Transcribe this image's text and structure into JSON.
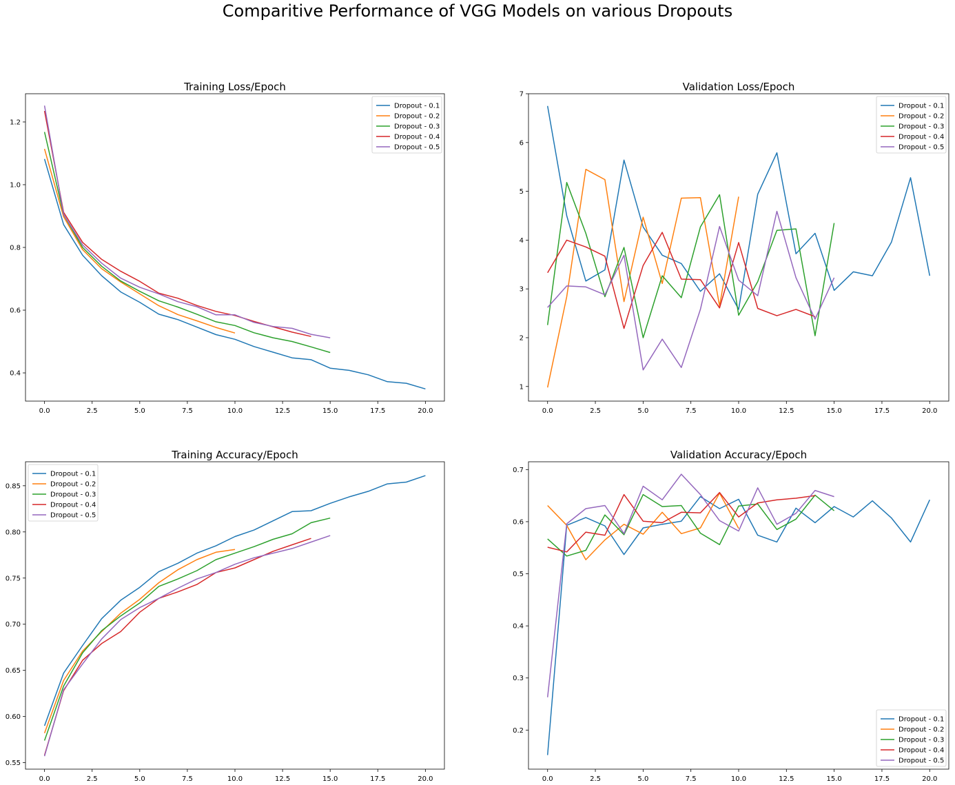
{
  "figure": {
    "suptitle": "Comparitive Performance of VGG Models on various Dropouts"
  },
  "colors": {
    "Dropout - 0.1": "#1f77b4",
    "Dropout - 0.2": "#ff7f0e",
    "Dropout - 0.3": "#2ca02c",
    "Dropout - 0.4": "#d62728",
    "Dropout - 0.5": "#9467bd"
  },
  "chart_data": [
    {
      "type": "line",
      "title": "Training Loss/Epoch",
      "xlabel": "",
      "ylabel": "",
      "xlim": [
        -1,
        21
      ],
      "ylim": [
        0.31,
        1.29
      ],
      "xticks": [
        0.0,
        2.5,
        5.0,
        7.5,
        10.0,
        12.5,
        15.0,
        17.5,
        20.0
      ],
      "xtick_labels": [
        "0.0",
        "2.5",
        "5.0",
        "7.5",
        "10.0",
        "12.5",
        "15.0",
        "17.5",
        "20.0"
      ],
      "yticks": [
        0.4,
        0.6,
        0.8,
        1.0,
        1.2
      ],
      "ytick_labels": [
        "0.4",
        "0.6",
        "0.8",
        "1.0",
        "1.2"
      ],
      "legend": "top-right",
      "grid": false,
      "series": [
        {
          "name": "Dropout - 0.1",
          "values": [
            1.082,
            0.873,
            0.775,
            0.71,
            0.658,
            0.625,
            0.587,
            0.57,
            0.546,
            0.522,
            0.507,
            0.484,
            0.466,
            0.448,
            0.442,
            0.415,
            0.408,
            0.394,
            0.372,
            0.367,
            0.349
          ]
        },
        {
          "name": "Dropout - 0.2",
          "values": [
            1.114,
            0.898,
            0.793,
            0.732,
            0.69,
            0.652,
            0.614,
            0.586,
            0.566,
            0.545,
            0.527
          ]
        },
        {
          "name": "Dropout - 0.3",
          "values": [
            1.168,
            0.905,
            0.8,
            0.74,
            0.693,
            0.66,
            0.63,
            0.61,
            0.587,
            0.563,
            0.551,
            0.528,
            0.512,
            0.5,
            0.483,
            0.465
          ]
        },
        {
          "name": "Dropout - 0.4",
          "values": [
            1.235,
            0.912,
            0.816,
            0.762,
            0.724,
            0.692,
            0.654,
            0.638,
            0.615,
            0.596,
            0.583,
            0.564,
            0.547,
            0.53,
            0.516
          ]
        },
        {
          "name": "Dropout - 0.5",
          "values": [
            1.252,
            0.905,
            0.808,
            0.75,
            0.702,
            0.673,
            0.652,
            0.627,
            0.611,
            0.585,
            0.585,
            0.561,
            0.548,
            0.542,
            0.523,
            0.512
          ]
        }
      ]
    },
    {
      "type": "line",
      "title": "Validation Loss/Epoch",
      "xlabel": "",
      "ylabel": "",
      "xlim": [
        -1,
        21
      ],
      "ylim": [
        0.7,
        7.0
      ],
      "xticks": [
        0.0,
        2.5,
        5.0,
        7.5,
        10.0,
        12.5,
        15.0,
        17.5,
        20.0
      ],
      "xtick_labels": [
        "0.0",
        "2.5",
        "5.0",
        "7.5",
        "10.0",
        "12.5",
        "15.0",
        "17.5",
        "20.0"
      ],
      "yticks": [
        1,
        2,
        3,
        4,
        5,
        6,
        7
      ],
      "ytick_labels": [
        "1",
        "2",
        "3",
        "4",
        "5",
        "6",
        "7"
      ],
      "legend": "top-right",
      "grid": false,
      "series": [
        {
          "name": "Dropout - 0.1",
          "values": [
            6.75,
            4.5,
            3.16,
            3.39,
            5.64,
            4.27,
            3.69,
            3.52,
            2.95,
            3.31,
            2.58,
            4.94,
            5.79,
            3.72,
            4.14,
            2.97,
            3.35,
            3.27,
            3.96,
            5.28,
            3.27
          ]
        },
        {
          "name": "Dropout - 0.2",
          "values": [
            0.98,
            2.84,
            5.45,
            5.24,
            2.74,
            4.47,
            3.11,
            4.86,
            4.87,
            2.65,
            4.89
          ]
        },
        {
          "name": "Dropout - 0.3",
          "values": [
            2.26,
            5.18,
            4.14,
            2.84,
            3.85,
            2.0,
            3.27,
            2.82,
            4.27,
            4.93,
            2.46,
            3.15,
            4.2,
            4.23,
            2.04,
            4.35
          ]
        },
        {
          "name": "Dropout - 0.4",
          "values": [
            3.33,
            4.0,
            3.86,
            3.67,
            2.19,
            3.48,
            4.16,
            3.2,
            3.19,
            2.61,
            3.95,
            2.6,
            2.45,
            2.58,
            2.43
          ]
        },
        {
          "name": "Dropout - 0.5",
          "values": [
            2.62,
            3.06,
            3.04,
            2.88,
            3.69,
            1.34,
            1.97,
            1.39,
            2.58,
            4.28,
            3.18,
            2.86,
            4.59,
            3.23,
            2.38,
            3.23
          ]
        }
      ]
    },
    {
      "type": "line",
      "title": "Training Accuracy/Epoch",
      "xlabel": "",
      "ylabel": "",
      "xlim": [
        -1,
        21
      ],
      "ylim": [
        0.543,
        0.876
      ],
      "xticks": [
        0.0,
        2.5,
        5.0,
        7.5,
        10.0,
        12.5,
        15.0,
        17.5,
        20.0
      ],
      "xtick_labels": [
        "0.0",
        "2.5",
        "5.0",
        "7.5",
        "10.0",
        "12.5",
        "15.0",
        "17.5",
        "20.0"
      ],
      "yticks": [
        0.55,
        0.6,
        0.65,
        0.7,
        0.75,
        0.8,
        0.85
      ],
      "ytick_labels": [
        "0.55",
        "0.60",
        "0.65",
        "0.70",
        "0.75",
        "0.80",
        "0.85"
      ],
      "legend": "top-left",
      "grid": false,
      "series": [
        {
          "name": "Dropout - 0.1",
          "values": [
            0.59,
            0.647,
            0.677,
            0.706,
            0.726,
            0.74,
            0.757,
            0.766,
            0.777,
            0.785,
            0.795,
            0.802,
            0.812,
            0.822,
            0.823,
            0.831,
            0.838,
            0.844,
            0.852,
            0.854,
            0.861
          ]
        },
        {
          "name": "Dropout - 0.2",
          "values": [
            0.582,
            0.639,
            0.671,
            0.692,
            0.712,
            0.727,
            0.745,
            0.759,
            0.77,
            0.778,
            0.781
          ]
        },
        {
          "name": "Dropout - 0.3",
          "values": [
            0.574,
            0.633,
            0.669,
            0.693,
            0.709,
            0.723,
            0.741,
            0.749,
            0.758,
            0.77,
            0.777,
            0.784,
            0.792,
            0.798,
            0.81,
            0.815
          ]
        },
        {
          "name": "Dropout - 0.4",
          "values": [
            0.558,
            0.628,
            0.661,
            0.679,
            0.692,
            0.713,
            0.728,
            0.735,
            0.743,
            0.756,
            0.761,
            0.77,
            0.779,
            0.786,
            0.793
          ]
        },
        {
          "name": "Dropout - 0.5",
          "values": [
            0.557,
            0.629,
            0.657,
            0.684,
            0.705,
            0.718,
            0.728,
            0.739,
            0.749,
            0.756,
            0.765,
            0.772,
            0.777,
            0.782,
            0.789,
            0.796
          ]
        }
      ]
    },
    {
      "type": "line",
      "title": "Validation Accuracy/Epoch",
      "xlabel": "",
      "ylabel": "",
      "xlim": [
        -1,
        21
      ],
      "ylim": [
        0.125,
        0.715
      ],
      "xticks": [
        0.0,
        2.5,
        5.0,
        7.5,
        10.0,
        12.5,
        15.0,
        17.5,
        20.0
      ],
      "xtick_labels": [
        "0.0",
        "2.5",
        "5.0",
        "7.5",
        "10.0",
        "12.5",
        "15.0",
        "17.5",
        "20.0"
      ],
      "yticks": [
        0.2,
        0.3,
        0.4,
        0.5,
        0.6,
        0.7
      ],
      "ytick_labels": [
        "0.2",
        "0.3",
        "0.4",
        "0.5",
        "0.6",
        "0.7"
      ],
      "legend": "bottom-right",
      "grid": false,
      "series": [
        {
          "name": "Dropout - 0.1",
          "values": [
            0.152,
            0.593,
            0.608,
            0.592,
            0.537,
            0.588,
            0.595,
            0.601,
            0.648,
            0.625,
            0.643,
            0.574,
            0.561,
            0.626,
            0.598,
            0.629,
            0.609,
            0.64,
            0.607,
            0.561,
            0.642
          ]
        },
        {
          "name": "Dropout - 0.2",
          "values": [
            0.631,
            0.593,
            0.527,
            0.565,
            0.595,
            0.576,
            0.618,
            0.577,
            0.588,
            0.655,
            0.587
          ]
        },
        {
          "name": "Dropout - 0.3",
          "values": [
            0.567,
            0.534,
            0.545,
            0.613,
            0.575,
            0.652,
            0.629,
            0.631,
            0.578,
            0.556,
            0.63,
            0.634,
            0.585,
            0.605,
            0.651,
            0.621
          ]
        },
        {
          "name": "Dropout - 0.4",
          "values": [
            0.551,
            0.542,
            0.58,
            0.574,
            0.652,
            0.601,
            0.598,
            0.618,
            0.617,
            0.656,
            0.609,
            0.636,
            0.642,
            0.645,
            0.65
          ]
        },
        {
          "name": "Dropout - 0.5",
          "values": [
            0.263,
            0.596,
            0.625,
            0.631,
            0.577,
            0.668,
            0.642,
            0.691,
            0.652,
            0.602,
            0.582,
            0.665,
            0.595,
            0.616,
            0.66,
            0.648
          ]
        }
      ]
    }
  ]
}
